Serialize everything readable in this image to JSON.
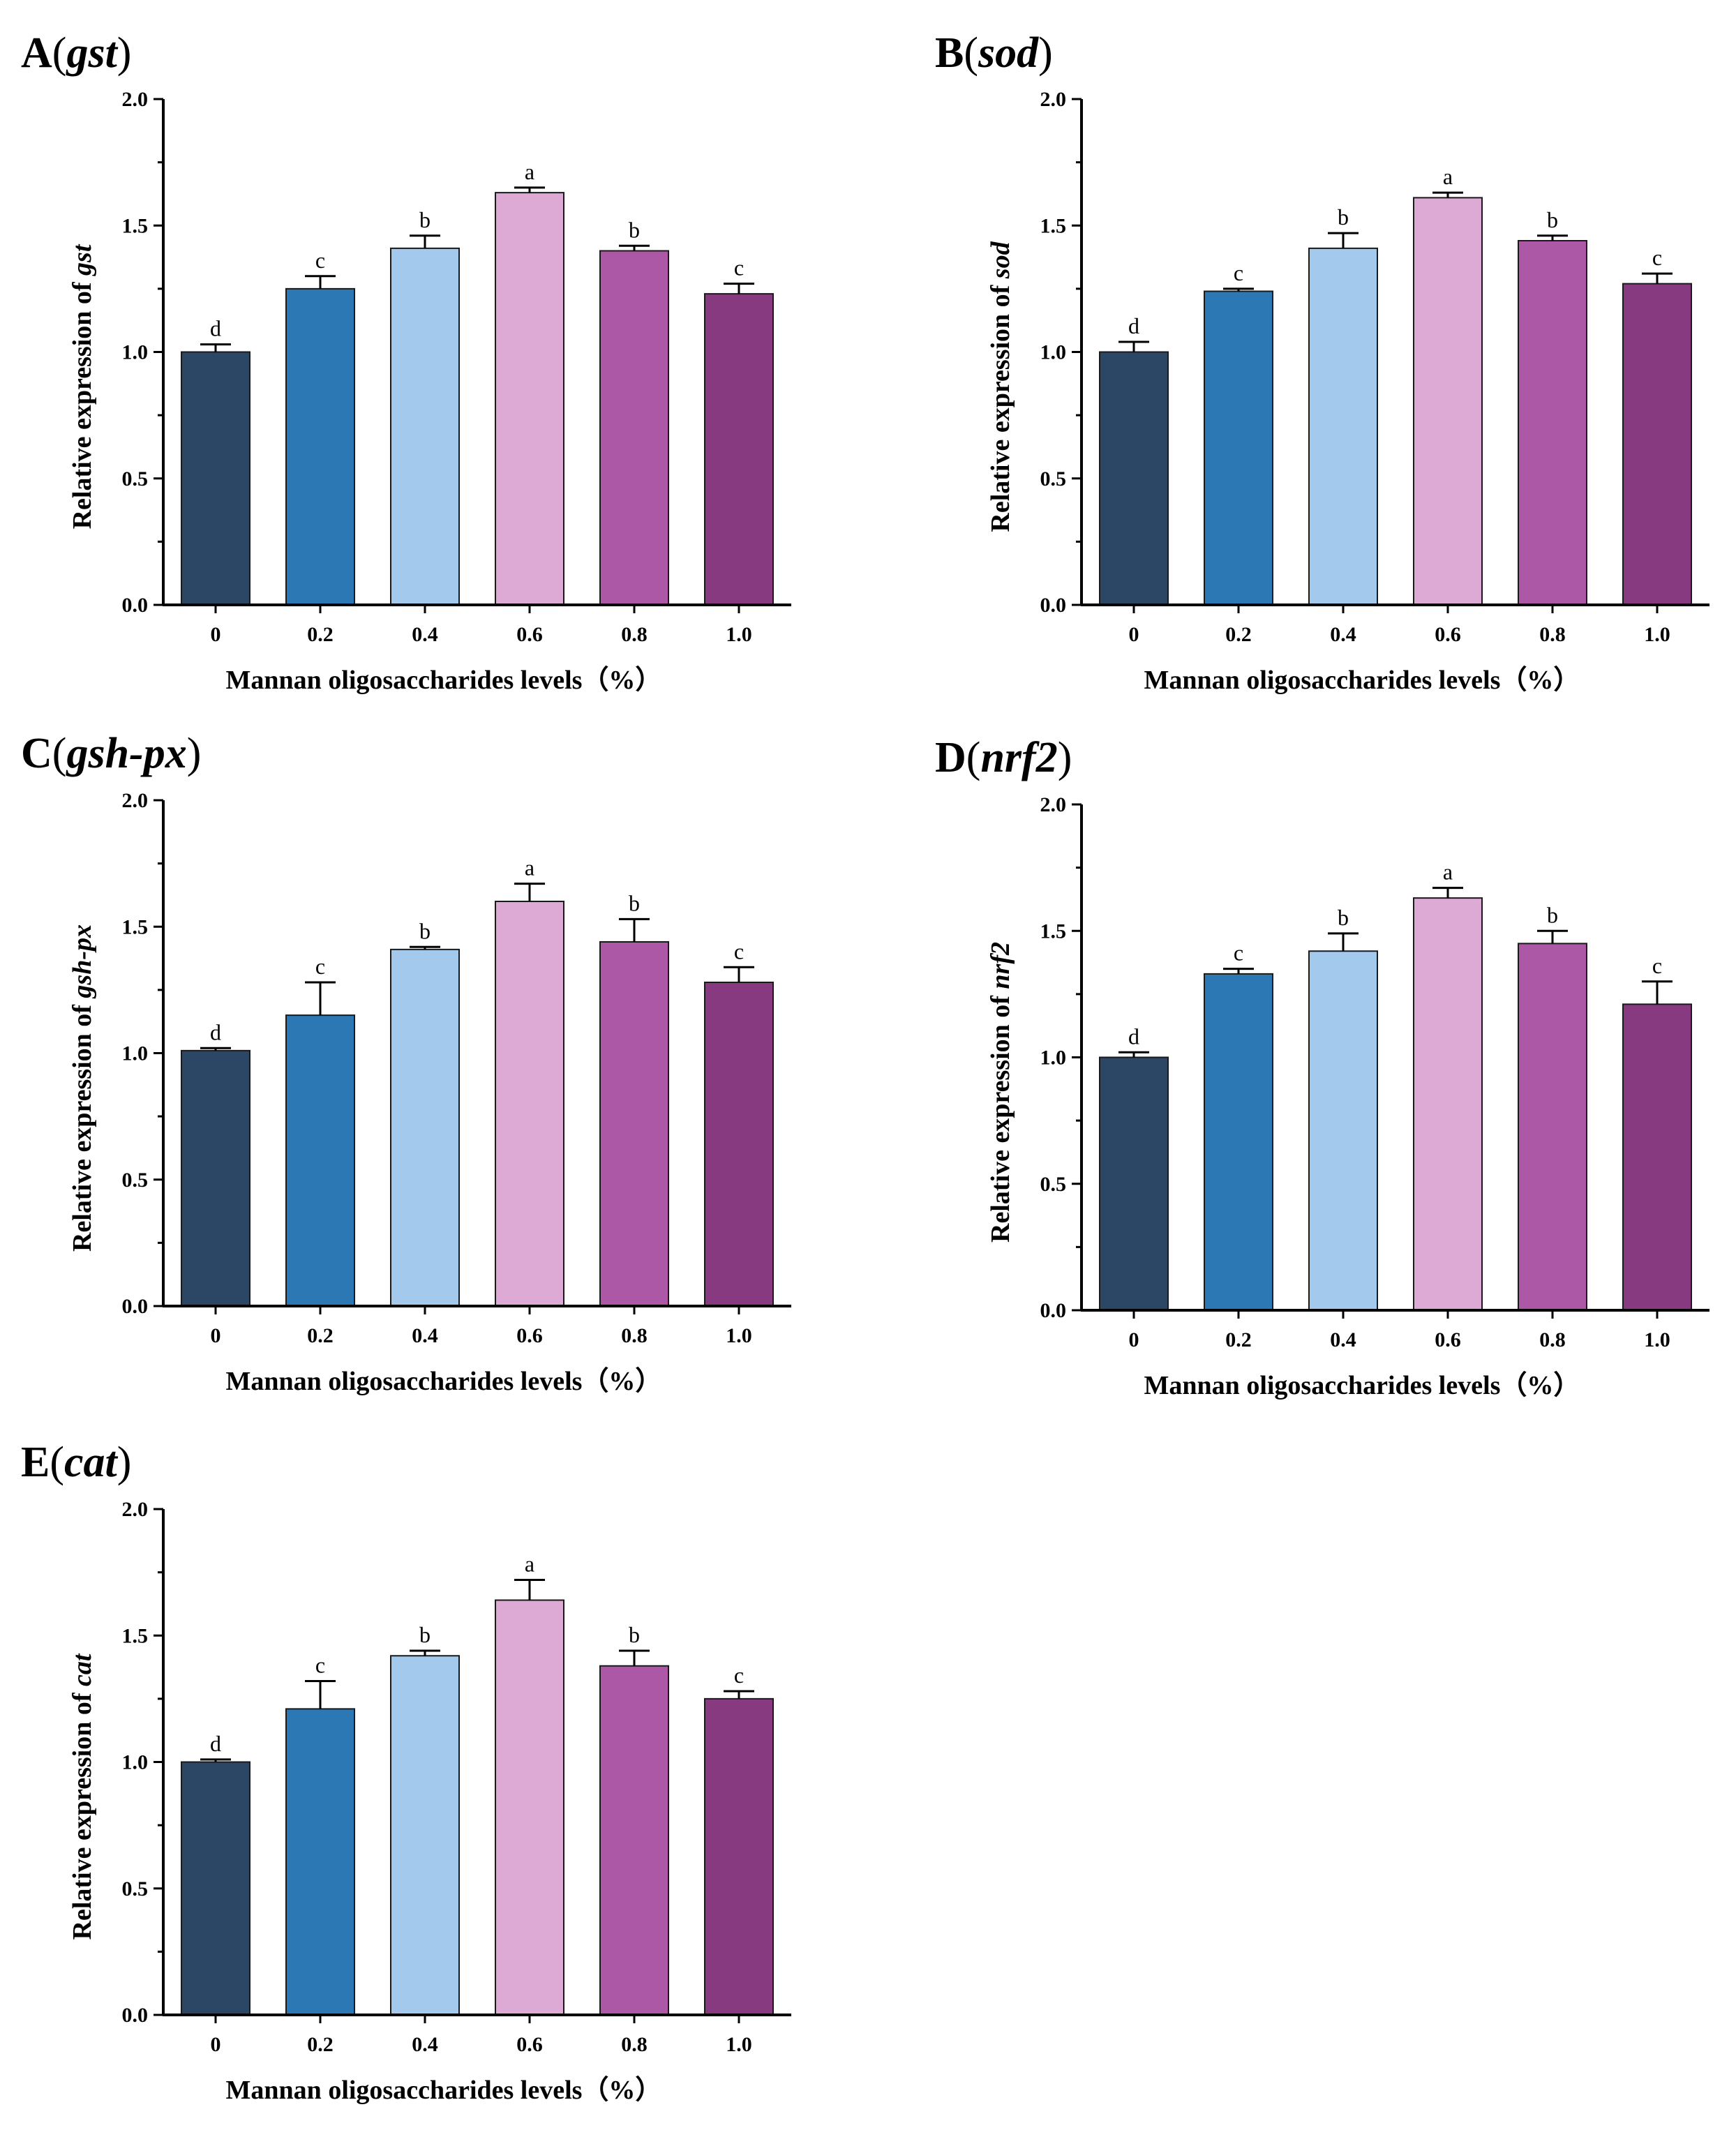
{
  "figure": {
    "palette": [
      "#2c4766",
      "#2b78b5",
      "#a3c9ec",
      "#dcaad4",
      "#ad58a6",
      "#883a80"
    ],
    "bar_stroke": "#1a1a1a"
  },
  "chart_data": [
    {
      "type": "bar",
      "panel_letter": "A",
      "gene": "gst",
      "title": "A (gst)",
      "xlabel": "Mannan oligosaccharides levels（%）",
      "ylabel_prefix": "Relative expression of ",
      "ylabel": "Relative expression of gst",
      "categories": [
        "0",
        "0.2",
        "0.4",
        "0.6",
        "0.8",
        "1.0"
      ],
      "values": [
        1.0,
        1.25,
        1.41,
        1.63,
        1.4,
        1.23
      ],
      "errors": [
        0.03,
        0.05,
        0.05,
        0.02,
        0.02,
        0.04
      ],
      "letters": [
        "d",
        "c",
        "b",
        "a",
        "b",
        "c"
      ],
      "ylim": [
        0,
        2.0
      ],
      "yticks": [
        "0.0",
        "0.5",
        "1.0",
        "1.5",
        "2.0"
      ]
    },
    {
      "type": "bar",
      "panel_letter": "B",
      "gene": "sod",
      "title": "B (sod)",
      "xlabel": "Mannan oligosaccharides levels（%）",
      "ylabel_prefix": "Relative expression of ",
      "ylabel": "Relative expression of sod",
      "categories": [
        "0",
        "0.2",
        "0.4",
        "0.6",
        "0.8",
        "1.0"
      ],
      "values": [
        1.0,
        1.24,
        1.41,
        1.61,
        1.44,
        1.27
      ],
      "errors": [
        0.04,
        0.01,
        0.06,
        0.02,
        0.02,
        0.04
      ],
      "letters": [
        "d",
        "c",
        "b",
        "a",
        "b",
        "c"
      ],
      "ylim": [
        0,
        2.0
      ],
      "yticks": [
        "0.0",
        "0.5",
        "1.0",
        "1.5",
        "2.0"
      ]
    },
    {
      "type": "bar",
      "panel_letter": "C",
      "gene": "gsh-px",
      "title": "C (gsh-px)",
      "xlabel": "Mannan oligosaccharides levels（%）",
      "ylabel_prefix": "Relative expression of ",
      "ylabel": "Relative expression of gsh-px",
      "categories": [
        "0",
        "0.2",
        "0.4",
        "0.6",
        "0.8",
        "1.0"
      ],
      "values": [
        1.01,
        1.15,
        1.41,
        1.6,
        1.44,
        1.28
      ],
      "errors": [
        0.01,
        0.13,
        0.01,
        0.07,
        0.09,
        0.06
      ],
      "letters": [
        "d",
        "c",
        "b",
        "a",
        "b",
        "c"
      ],
      "ylim": [
        0,
        2.0
      ],
      "yticks": [
        "0.0",
        "0.5",
        "1.0",
        "1.5",
        "2.0"
      ]
    },
    {
      "type": "bar",
      "panel_letter": "D",
      "gene": "nrf2",
      "title": "D (nrf2)",
      "xlabel": "Mannan oligosaccharides levels（%）",
      "ylabel_prefix": "Relative expression of ",
      "ylabel": "Relative expression of nrf2",
      "categories": [
        "0",
        "0.2",
        "0.4",
        "0.6",
        "0.8",
        "1.0"
      ],
      "values": [
        1.0,
        1.33,
        1.42,
        1.63,
        1.45,
        1.21
      ],
      "errors": [
        0.02,
        0.02,
        0.07,
        0.04,
        0.05,
        0.09
      ],
      "letters": [
        "d",
        "c",
        "b",
        "a",
        "b",
        "c"
      ],
      "ylim": [
        0,
        2.0
      ],
      "yticks": [
        "0.0",
        "0.5",
        "1.0",
        "1.5",
        "2.0"
      ]
    },
    {
      "type": "bar",
      "panel_letter": "E",
      "gene": "cat",
      "title": "E (cat)",
      "xlabel": "Mannan oligosaccharides levels（%）",
      "ylabel_prefix": "Relative expression of ",
      "ylabel": "Relative expression of cat",
      "categories": [
        "0",
        "0.2",
        "0.4",
        "0.6",
        "0.8",
        "1.0"
      ],
      "values": [
        1.0,
        1.21,
        1.42,
        1.64,
        1.38,
        1.25
      ],
      "errors": [
        0.01,
        0.11,
        0.02,
        0.08,
        0.06,
        0.03
      ],
      "letters": [
        "d",
        "c",
        "b",
        "a",
        "b",
        "c"
      ],
      "ylim": [
        0,
        2.0
      ],
      "yticks": [
        "0.0",
        "0.5",
        "1.0",
        "1.5",
        "2.0"
      ]
    }
  ]
}
